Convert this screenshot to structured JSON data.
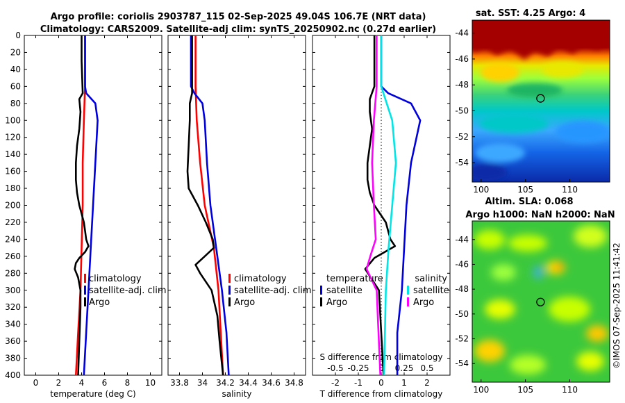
{
  "header": {
    "line1": "Argo profile: coriolis 2903787_115 02-Sep-2025 49.04S 106.7E (NRT data)",
    "line2": "Climatology: CARS2009. Satellite-adj clim: synTS_20250902.nc (0.27d earlier)"
  },
  "credit": "©IMOS 07-Sep-2025 11:41:42",
  "colors": {
    "climatology": "#ff0000",
    "satellite": "#0000dd",
    "argo": "#000000",
    "salinity_sat": "#00e5e5",
    "salinity_argo": "#ff00ff"
  },
  "chart_data": [
    {
      "type": "line",
      "panel": "temperature",
      "xlabel": "temperature (deg C)",
      "ylabel": "",
      "xlim": [
        -1,
        11
      ],
      "ylim": [
        400,
        0
      ],
      "xticks": [
        "0",
        "2",
        "4",
        "6",
        "8",
        "10"
      ],
      "yticks": [
        "0",
        "20",
        "40",
        "60",
        "80",
        "100",
        "120",
        "140",
        "160",
        "180",
        "200",
        "220",
        "240",
        "260",
        "280",
        "300",
        "320",
        "340",
        "360",
        "380",
        "400"
      ],
      "legend": [
        "climatology",
        "satellite-adj. clim",
        "Argo"
      ],
      "series": [
        {
          "name": "climatology",
          "color": "#ff0000",
          "depth": [
            0,
            60,
            100,
            150,
            200,
            250,
            300,
            350,
            400
          ],
          "values": [
            4.3,
            4.3,
            4.2,
            4.1,
            4.1,
            4.0,
            3.9,
            3.7,
            3.5
          ]
        },
        {
          "name": "satellite-adj. clim",
          "color": "#0000dd",
          "depth": [
            0,
            60,
            68,
            80,
            100,
            150,
            200,
            250,
            300,
            350,
            400
          ],
          "values": [
            4.3,
            4.3,
            4.4,
            5.2,
            5.4,
            5.2,
            5.0,
            4.8,
            4.6,
            4.4,
            4.2
          ]
        },
        {
          "name": "Argo",
          "color": "#000000",
          "depth": [
            0,
            30,
            68,
            75,
            90,
            110,
            130,
            150,
            170,
            185,
            200,
            210,
            220,
            230,
            240,
            248,
            255,
            262,
            268,
            275,
            285,
            300,
            320,
            360,
            400
          ],
          "values": [
            4.0,
            4.0,
            4.1,
            3.8,
            3.9,
            3.8,
            3.6,
            3.5,
            3.5,
            3.6,
            3.8,
            4.0,
            4.2,
            4.3,
            4.4,
            4.6,
            4.3,
            3.8,
            3.5,
            3.4,
            3.7,
            3.9,
            3.9,
            3.8,
            3.7
          ]
        }
      ]
    },
    {
      "type": "line",
      "panel": "salinity",
      "xlabel": "salinity",
      "ylabel": "",
      "xlim": [
        33.7,
        34.9
      ],
      "ylim": [
        400,
        0
      ],
      "xticks": [
        "33.8",
        "34",
        "34.2",
        "34.4",
        "34.6",
        "34.8"
      ],
      "legend": [
        "climatology",
        "satellite-adj. clim",
        "Argo"
      ],
      "series": [
        {
          "name": "climatology",
          "color": "#ff0000",
          "depth": [
            0,
            60,
            100,
            150,
            200,
            250,
            300,
            350,
            400
          ],
          "values": [
            33.94,
            33.94,
            33.95,
            33.98,
            34.02,
            34.1,
            34.14,
            34.16,
            34.18
          ]
        },
        {
          "name": "satellite-adj. clim",
          "color": "#0000dd",
          "depth": [
            0,
            60,
            68,
            80,
            100,
            150,
            200,
            250,
            300,
            350,
            400
          ],
          "values": [
            33.9,
            33.9,
            33.93,
            34.0,
            34.02,
            34.04,
            34.07,
            34.12,
            34.17,
            34.21,
            34.23
          ]
        },
        {
          "name": "Argo",
          "color": "#000000",
          "depth": [
            0,
            30,
            68,
            80,
            100,
            130,
            160,
            180,
            200,
            220,
            240,
            250,
            260,
            270,
            280,
            300,
            330,
            360,
            400
          ],
          "values": [
            33.91,
            33.91,
            33.91,
            33.89,
            33.89,
            33.88,
            33.87,
            33.88,
            33.96,
            34.03,
            34.09,
            34.1,
            34.02,
            33.94,
            33.98,
            34.08,
            34.13,
            34.15,
            34.18
          ]
        }
      ]
    },
    {
      "type": "line",
      "panel": "difference",
      "xlabel": "T difference from climatology",
      "xlabel_top": "S difference from climatology",
      "xlim": [
        -3,
        3
      ],
      "ylim": [
        400,
        0
      ],
      "xticks": [
        "-2",
        "-1",
        "0",
        "1",
        "2"
      ],
      "xticks_top": [
        "-0.5",
        "-0.25",
        "0",
        "0.25",
        "0.5"
      ],
      "legend_left": {
        "title": "temperature",
        "items": [
          "satellite",
          "Argo"
        ]
      },
      "legend_right": {
        "title": "salinity",
        "items": [
          "satellite",
          "Argo"
        ]
      },
      "series": [
        {
          "name": "T satellite",
          "color": "#0000dd",
          "depth": [
            0,
            60,
            68,
            80,
            100,
            150,
            200,
            250,
            300,
            350,
            400
          ],
          "values": [
            0.0,
            0.0,
            0.3,
            1.3,
            1.7,
            1.3,
            1.1,
            1.0,
            0.9,
            0.7,
            0.7
          ]
        },
        {
          "name": "T Argo",
          "color": "#000000",
          "depth": [
            0,
            60,
            75,
            90,
            110,
            130,
            150,
            170,
            185,
            200,
            220,
            240,
            248,
            262,
            275,
            300,
            350,
            400
          ],
          "values": [
            -0.3,
            -0.3,
            -0.5,
            -0.5,
            -0.4,
            -0.5,
            -0.6,
            -0.6,
            -0.5,
            -0.3,
            0.2,
            0.4,
            0.6,
            -0.3,
            -0.7,
            -0.1,
            0.0,
            0.1
          ]
        },
        {
          "name": "S satellite",
          "color": "#00e5e5",
          "depth": [
            0,
            60,
            80,
            100,
            150,
            200,
            250,
            300,
            400
          ],
          "values": [
            0.0,
            0.0,
            0.06,
            0.12,
            0.16,
            0.12,
            0.08,
            0.05,
            0.03
          ]
        },
        {
          "name": "S Argo",
          "color": "#ff00ff",
          "depth": [
            0,
            60,
            100,
            150,
            200,
            240,
            260,
            275,
            300,
            400
          ],
          "values": [
            -0.05,
            -0.05,
            -0.08,
            -0.1,
            -0.08,
            -0.06,
            -0.12,
            -0.16,
            -0.05,
            -0.01
          ]
        }
      ]
    },
    {
      "type": "heatmap",
      "panel": "sst_map",
      "title": "sat. SST: 4.25 Argo: 4",
      "xticks": [
        "100",
        "105",
        "110"
      ],
      "yticks": [
        "-44",
        "-46",
        "-48",
        "-50",
        "-52",
        "-54"
      ],
      "xlim": [
        99,
        114.5
      ],
      "ylim": [
        -55.5,
        -43
      ],
      "marker": {
        "lon": 106.7,
        "lat": -49.04
      }
    },
    {
      "type": "heatmap",
      "panel": "sla_map",
      "title_line1": "Altim. SLA: 0.068",
      "title_line2": "Argo h1000: NaN h2000: NaN",
      "xticks": [
        "100",
        "105",
        "110"
      ],
      "yticks": [
        "-44",
        "-46",
        "-48",
        "-50",
        "-52",
        "-54"
      ],
      "xlim": [
        99,
        114.5
      ],
      "ylim": [
        -55.5,
        -42.5
      ],
      "marker": {
        "lon": 106.7,
        "lat": -49.04
      }
    }
  ]
}
